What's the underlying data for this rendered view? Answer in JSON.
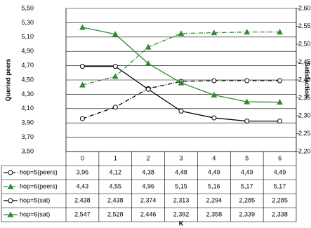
{
  "chart_data": {
    "type": "line",
    "categories": [
      "0",
      "1",
      "2",
      "3",
      "4",
      "5",
      "6"
    ],
    "xlabel": "K",
    "ylabel": "Queried peers",
    "y2label": "Satisfaction",
    "ylim": [
      3.5,
      5.5
    ],
    "yticks": [
      {
        "value": 3.5,
        "label": "3,50"
      },
      {
        "value": 3.7,
        "label": "3,70"
      },
      {
        "value": 3.9,
        "label": "3,90"
      },
      {
        "value": 4.1,
        "label": "4,10"
      },
      {
        "value": 4.3,
        "label": "4,30"
      },
      {
        "value": 4.5,
        "label": "4,50"
      },
      {
        "value": 4.7,
        "label": "4,70"
      },
      {
        "value": 4.9,
        "label": "4,90"
      },
      {
        "value": 5.1,
        "label": "5,10"
      },
      {
        "value": 5.3,
        "label": "5,30"
      },
      {
        "value": 5.5,
        "label": "5,50"
      }
    ],
    "y2lim": [
      2.2,
      2.6
    ],
    "y2ticks": [
      {
        "value": 2.2,
        "label": "2,20"
      },
      {
        "value": 2.25,
        "label": "2,25"
      },
      {
        "value": 2.3,
        "label": "2,30"
      },
      {
        "value": 2.35,
        "label": "2,35"
      },
      {
        "value": 2.4,
        "label": "2,40"
      },
      {
        "value": 2.45,
        "label": "2,45"
      },
      {
        "value": 2.5,
        "label": "2,50"
      },
      {
        "value": 2.55,
        "label": "2,55"
      },
      {
        "value": 2.6,
        "label": "2,60"
      }
    ],
    "grid": true,
    "series": [
      {
        "name": "hop=5(peers)",
        "color": "#000000",
        "dash": "dashdot",
        "marker": "circle",
        "axis": "y",
        "values": [
          3.96,
          4.12,
          4.38,
          4.48,
          4.49,
          4.49,
          4.49
        ],
        "value_labels": [
          "3,96",
          "4,12",
          "4,38",
          "4,48",
          "4,49",
          "4,49",
          "4,49"
        ]
      },
      {
        "name": "hop=6(peers)",
        "color": "#2e8b2e",
        "dash": "dashdot",
        "marker": "triangle",
        "axis": "y",
        "values": [
          4.43,
          4.55,
          4.96,
          5.15,
          5.16,
          5.17,
          5.17
        ],
        "value_labels": [
          "4,43",
          "4,55",
          "4,96",
          "5,15",
          "5,16",
          "5,17",
          "5,17"
        ]
      },
      {
        "name": "hop=5(sat)",
        "color": "#000000",
        "dash": "solid",
        "marker": "circle",
        "axis": "y2",
        "values": [
          2.438,
          2.438,
          2.374,
          2.313,
          2.294,
          2.285,
          2.285
        ],
        "value_labels": [
          "2,438",
          "2,438",
          "2,374",
          "2,313",
          "2,294",
          "2,285",
          "2,285"
        ]
      },
      {
        "name": "hop=6(sat)",
        "color": "#2e8b2e",
        "dash": "solid",
        "marker": "triangle",
        "axis": "y2",
        "values": [
          2.547,
          2.528,
          2.446,
          2.392,
          2.358,
          2.339,
          2.338
        ],
        "value_labels": [
          "2,547",
          "2,528",
          "2,446",
          "2,392",
          "2,358",
          "2,339",
          "2,338"
        ]
      }
    ]
  }
}
